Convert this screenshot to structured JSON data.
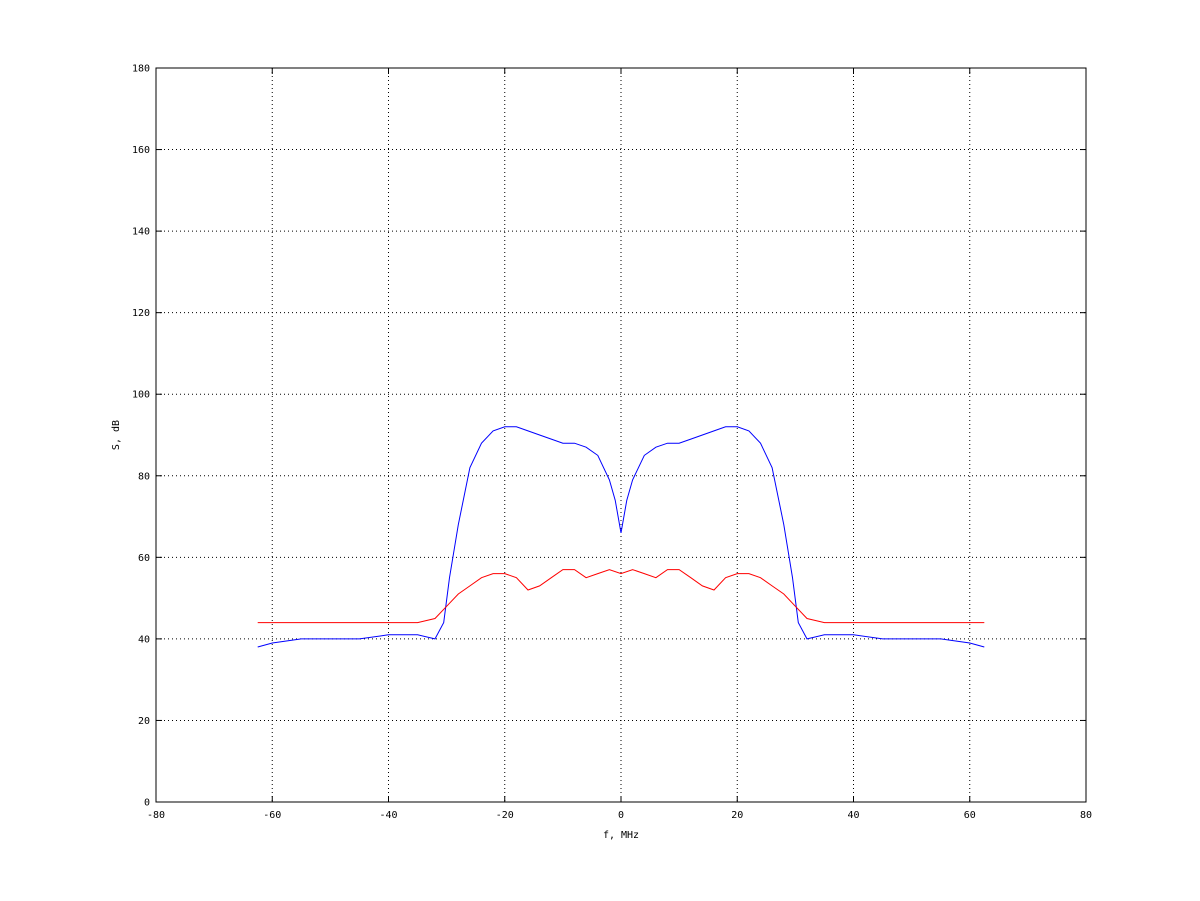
{
  "chart_data": {
    "type": "line",
    "title": "",
    "xlabel": "f, MHz",
    "ylabel": "S, dB",
    "xlim": [
      -80,
      80
    ],
    "ylim": [
      0,
      180
    ],
    "xticks": [
      -80,
      -60,
      -40,
      -20,
      0,
      20,
      40,
      60,
      80
    ],
    "yticks": [
      0,
      20,
      40,
      60,
      80,
      100,
      120,
      140,
      160,
      180
    ],
    "grid": true,
    "legend": "none",
    "series": [
      {
        "color": "#0000ff",
        "x": [
          -62.5,
          -60,
          -55,
          -50,
          -45,
          -40,
          -35,
          -32,
          -30.5,
          -29.5,
          -28,
          -26,
          -24,
          -22,
          -20,
          -18,
          -16,
          -14,
          -12,
          -10,
          -8,
          -6,
          -4,
          -2,
          -1,
          0,
          1,
          2,
          4,
          6,
          8,
          10,
          12,
          14,
          16,
          18,
          20,
          22,
          24,
          26,
          28,
          29.5,
          30.5,
          32,
          35,
          40,
          45,
          50,
          55,
          60,
          62.5
        ],
        "y": [
          38,
          39,
          40,
          40,
          40,
          41,
          41,
          40,
          44,
          55,
          68,
          82,
          88,
          91,
          92,
          92,
          91,
          90,
          89,
          88,
          88,
          87,
          85,
          79,
          74,
          66,
          74,
          79,
          85,
          87,
          88,
          88,
          89,
          90,
          91,
          92,
          92,
          91,
          88,
          82,
          68,
          55,
          44,
          40,
          41,
          41,
          40,
          40,
          40,
          39,
          38
        ]
      },
      {
        "color": "#ff0000",
        "x": [
          -62.5,
          -60,
          -55,
          -50,
          -45,
          -40,
          -35,
          -32,
          -30,
          -28,
          -26,
          -24,
          -22,
          -20,
          -18,
          -16,
          -14,
          -12,
          -10,
          -8,
          -6,
          -4,
          -2,
          0,
          2,
          4,
          6,
          8,
          10,
          12,
          14,
          16,
          18,
          20,
          22,
          24,
          26,
          28,
          30,
          32,
          35,
          40,
          45,
          50,
          55,
          60,
          62.5
        ],
        "y": [
          44,
          44,
          44,
          44,
          44,
          44,
          44,
          45,
          48,
          51,
          53,
          55,
          56,
          56,
          55,
          52,
          53,
          55,
          57,
          57,
          55,
          56,
          57,
          56,
          57,
          56,
          55,
          57,
          57,
          55,
          53,
          52,
          55,
          56,
          56,
          55,
          53,
          51,
          48,
          45,
          44,
          44,
          44,
          44,
          44,
          44,
          44
        ]
      }
    ]
  }
}
